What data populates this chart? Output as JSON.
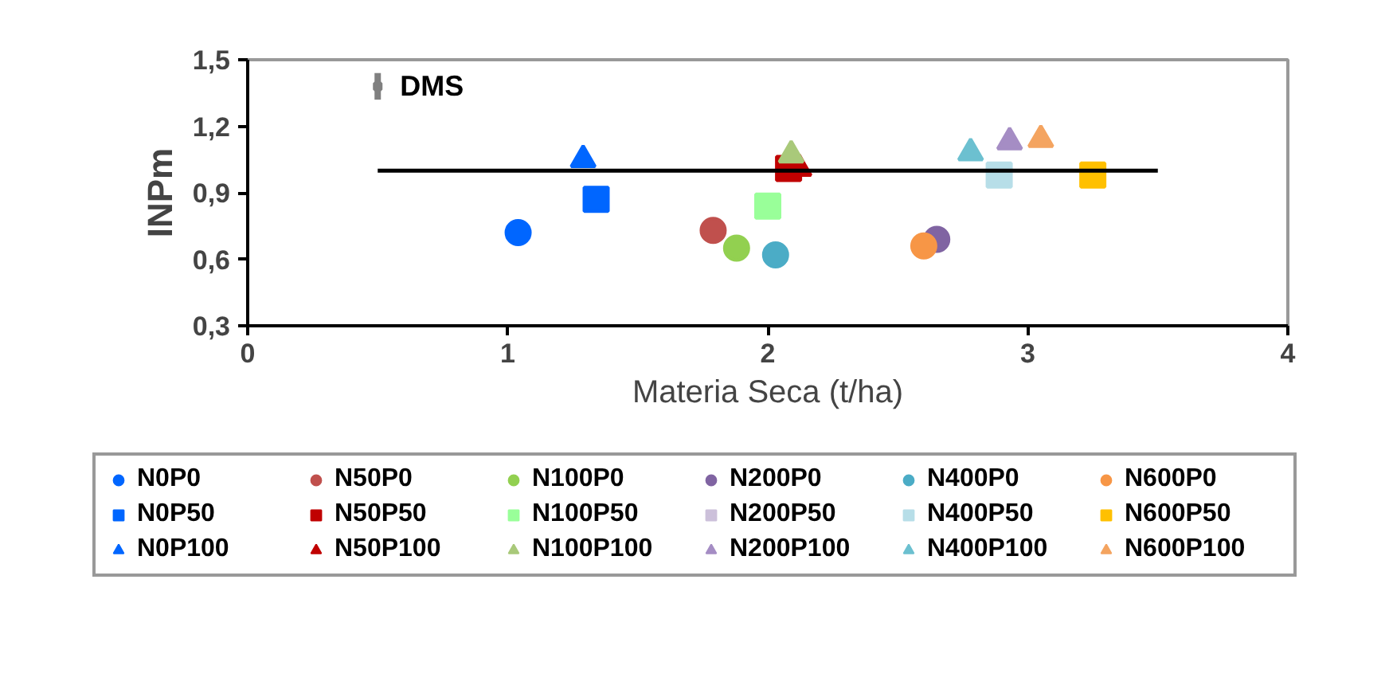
{
  "chart_data": {
    "type": "scatter",
    "xlabel": "Materia Seca (t/ha)",
    "ylabel": "INPm",
    "xlim": [
      0,
      4
    ],
    "xticks": [
      0,
      1,
      2,
      3,
      4
    ],
    "ylim": [
      0.3,
      1.5
    ],
    "yticks": [
      {
        "value": 0.3,
        "label": "0,3"
      },
      {
        "value": 0.6,
        "label": "0,6"
      },
      {
        "value": 0.9,
        "label": "0,9"
      },
      {
        "value": 1.2,
        "label": "1,2"
      },
      {
        "value": 1.5,
        "label": "1,5"
      }
    ],
    "grid": false,
    "legend": "bottom",
    "annotations": [
      "DMS"
    ],
    "series": [
      {
        "name": "N0P0",
        "color": "#0066ff",
        "marker": "circle",
        "x": [
          1.04
        ],
        "values": [
          0.72
        ]
      },
      {
        "name": "N50P0",
        "color": "#c0504d",
        "marker": "circle",
        "x": [
          1.79
        ],
        "values": [
          0.73
        ]
      },
      {
        "name": "N100P0",
        "color": "#92d050",
        "marker": "circle",
        "x": [
          1.88
        ],
        "values": [
          0.65
        ]
      },
      {
        "name": "N200P0",
        "color": "#8064a2",
        "marker": "circle",
        "x": [
          2.65
        ],
        "values": [
          0.69
        ]
      },
      {
        "name": "N400P0",
        "color": "#4bacc6",
        "marker": "circle",
        "x": [
          2.03
        ],
        "values": [
          0.62
        ]
      },
      {
        "name": "N600P0",
        "color": "#f79646",
        "marker": "circle",
        "x": [
          2.6
        ],
        "values": [
          0.66
        ]
      },
      {
        "name": "N0P50",
        "color": "#0066ff",
        "marker": "square",
        "x": [
          1.34
        ],
        "values": [
          0.87
        ]
      },
      {
        "name": "N50P50",
        "color": "#c00000",
        "marker": "square",
        "x": [
          2.08
        ],
        "values": [
          1.01
        ]
      },
      {
        "name": "N100P50",
        "color": "#99ff99",
        "marker": "square",
        "x": [
          2.0
        ],
        "values": [
          0.84
        ]
      },
      {
        "name": "N200P50",
        "color": "#ccc0da",
        "marker": "square",
        "x": [
          null
        ],
        "values": [
          null
        ]
      },
      {
        "name": "N400P50",
        "color": "#b7dee8",
        "marker": "square",
        "x": [
          2.89
        ],
        "values": [
          0.98
        ]
      },
      {
        "name": "N600P50",
        "color": "#ffc000",
        "marker": "square",
        "x": [
          3.25
        ],
        "values": [
          0.98
        ]
      },
      {
        "name": "N0P100",
        "color": "#0066ff",
        "marker": "triangle",
        "x": [
          1.29
        ],
        "values": [
          1.05
        ]
      },
      {
        "name": "N50P100",
        "color": "#c00000",
        "marker": "triangle",
        "x": [
          2.12
        ],
        "values": [
          1.01
        ]
      },
      {
        "name": "N100P100",
        "color": "#a9c97a",
        "marker": "triangle",
        "x": [
          2.09
        ],
        "values": [
          1.07
        ]
      },
      {
        "name": "N200P100",
        "color": "#a58dc4",
        "marker": "triangle",
        "x": [
          2.93
        ],
        "values": [
          1.13
        ]
      },
      {
        "name": "N400P100",
        "color": "#6cc0d0",
        "marker": "triangle",
        "x": [
          2.78
        ],
        "values": [
          1.08
        ]
      },
      {
        "name": "N600P100",
        "color": "#f4a460",
        "marker": "triangle",
        "x": [
          3.05
        ],
        "values": [
          1.14
        ]
      },
      {
        "type": "line",
        "color": "#000000",
        "marker": "none",
        "line_style": "solid",
        "x": [
          0.5,
          3.5
        ],
        "values": [
          1.0,
          1.0
        ]
      },
      {
        "type": "scatter",
        "color": "#808080",
        "marker": "square",
        "x": [
          0.5
        ],
        "values": [
          1.38
        ],
        "errors": [
          0.06
        ]
      }
    ]
  }
}
